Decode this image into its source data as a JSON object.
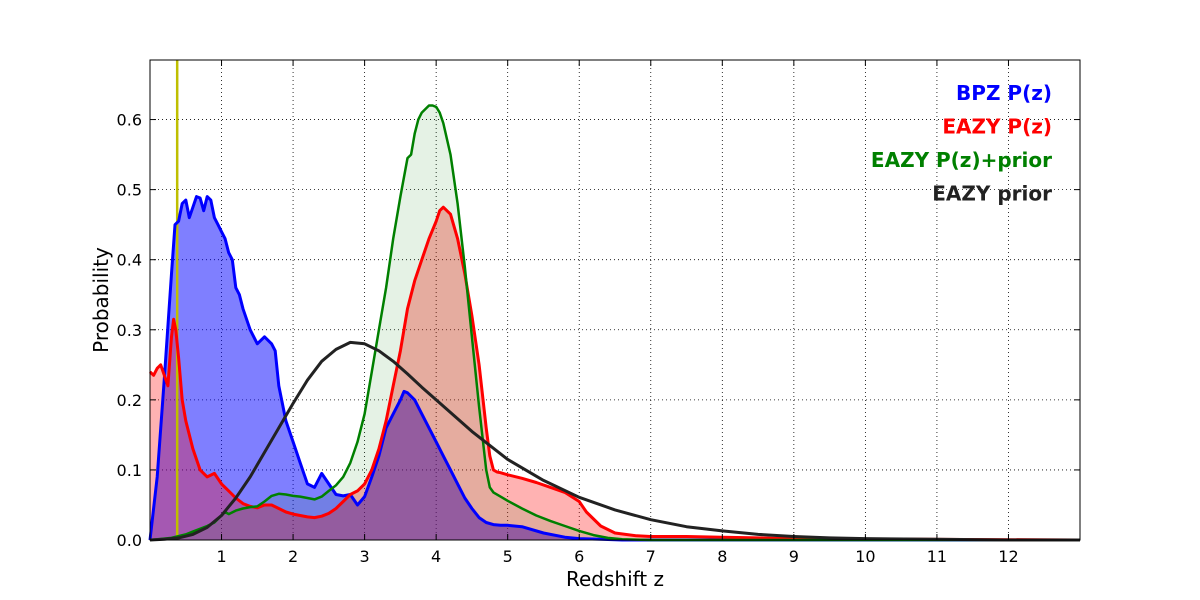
{
  "chart_data": {
    "type": "area",
    "title": "",
    "xlabel": "Redshift z",
    "ylabel": "Probability",
    "xlim": [
      0,
      13
    ],
    "ylim": [
      0,
      0.685
    ],
    "xticks": [
      1,
      2,
      3,
      4,
      5,
      6,
      7,
      8,
      9,
      10,
      11,
      12
    ],
    "yticks": [
      0.0,
      0.1,
      0.2,
      0.3,
      0.4,
      0.5,
      0.6
    ],
    "grid": true,
    "legend_position": "top-right",
    "vertical_line": {
      "x": 0.38,
      "color": "#bfbf00"
    },
    "series": [
      {
        "name": "BPZ P(z)",
        "color": "#0000ff",
        "fill_opacity": 0.5,
        "line_width": 3,
        "x": [
          0,
          0.1,
          0.2,
          0.3,
          0.35,
          0.4,
          0.45,
          0.5,
          0.55,
          0.6,
          0.65,
          0.7,
          0.75,
          0.8,
          0.85,
          0.9,
          0.95,
          1.0,
          1.05,
          1.1,
          1.15,
          1.2,
          1.25,
          1.3,
          1.4,
          1.5,
          1.6,
          1.7,
          1.75,
          1.8,
          1.9,
          2.0,
          2.1,
          2.2,
          2.3,
          2.4,
          2.5,
          2.6,
          2.7,
          2.8,
          2.9,
          3.0,
          3.1,
          3.2,
          3.3,
          3.4,
          3.5,
          3.55,
          3.6,
          3.7,
          3.8,
          3.9,
          4.0,
          4.1,
          4.2,
          4.3,
          4.4,
          4.5,
          4.6,
          4.7,
          4.8,
          4.9,
          5.0,
          5.2,
          5.5,
          5.8,
          6.0,
          6.3,
          6.6,
          7.0,
          13.0
        ],
        "values": [
          0.0,
          0.09,
          0.23,
          0.38,
          0.45,
          0.455,
          0.48,
          0.485,
          0.46,
          0.475,
          0.49,
          0.488,
          0.47,
          0.49,
          0.485,
          0.46,
          0.45,
          0.44,
          0.43,
          0.41,
          0.4,
          0.36,
          0.35,
          0.33,
          0.3,
          0.28,
          0.29,
          0.28,
          0.27,
          0.22,
          0.17,
          0.14,
          0.11,
          0.08,
          0.075,
          0.095,
          0.08,
          0.065,
          0.063,
          0.065,
          0.05,
          0.062,
          0.09,
          0.12,
          0.16,
          0.18,
          0.2,
          0.212,
          0.21,
          0.2,
          0.18,
          0.16,
          0.14,
          0.12,
          0.1,
          0.08,
          0.06,
          0.045,
          0.032,
          0.025,
          0.022,
          0.021,
          0.021,
          0.019,
          0.01,
          0.004,
          0.002,
          0.001,
          0.0,
          0.0,
          0.0
        ]
      },
      {
        "name": "EAZY P(z)",
        "color": "#ff0000",
        "fill_opacity": 0.3,
        "line_width": 3,
        "x": [
          0,
          0.05,
          0.1,
          0.15,
          0.2,
          0.25,
          0.3,
          0.33,
          0.36,
          0.4,
          0.45,
          0.5,
          0.6,
          0.7,
          0.8,
          0.9,
          1.0,
          1.1,
          1.2,
          1.3,
          1.4,
          1.5,
          1.6,
          1.7,
          1.8,
          1.9,
          2.0,
          2.1,
          2.2,
          2.3,
          2.4,
          2.5,
          2.6,
          2.7,
          2.8,
          2.9,
          3.0,
          3.1,
          3.2,
          3.3,
          3.4,
          3.5,
          3.6,
          3.7,
          3.8,
          3.9,
          4.0,
          4.05,
          4.1,
          4.2,
          4.3,
          4.4,
          4.5,
          4.6,
          4.7,
          4.75,
          4.8,
          4.85,
          4.9,
          5.0,
          5.2,
          5.4,
          5.6,
          5.8,
          6.0,
          6.1,
          6.3,
          6.5,
          6.8,
          7.0,
          7.5,
          8.0,
          8.5,
          9.0,
          13.0
        ],
        "values": [
          0.24,
          0.235,
          0.245,
          0.25,
          0.235,
          0.22,
          0.29,
          0.315,
          0.3,
          0.26,
          0.2,
          0.17,
          0.13,
          0.1,
          0.09,
          0.095,
          0.08,
          0.07,
          0.06,
          0.052,
          0.048,
          0.046,
          0.05,
          0.05,
          0.045,
          0.04,
          0.037,
          0.035,
          0.033,
          0.032,
          0.034,
          0.038,
          0.045,
          0.055,
          0.065,
          0.07,
          0.08,
          0.1,
          0.13,
          0.17,
          0.22,
          0.27,
          0.33,
          0.37,
          0.4,
          0.43,
          0.455,
          0.47,
          0.475,
          0.465,
          0.43,
          0.38,
          0.32,
          0.25,
          0.16,
          0.12,
          0.1,
          0.097,
          0.096,
          0.093,
          0.088,
          0.082,
          0.075,
          0.068,
          0.055,
          0.04,
          0.02,
          0.01,
          0.006,
          0.005,
          0.005,
          0.004,
          0.003,
          0.002,
          0.0
        ]
      },
      {
        "name": "EAZY P(z)+prior",
        "color": "#008000",
        "fill_opacity": 0.1,
        "line_width": 2.5,
        "x": [
          0,
          0.3,
          0.5,
          0.6,
          0.7,
          0.8,
          0.9,
          1.0,
          1.05,
          1.1,
          1.2,
          1.3,
          1.4,
          1.5,
          1.6,
          1.7,
          1.8,
          1.9,
          2.0,
          2.1,
          2.2,
          2.3,
          2.4,
          2.5,
          2.6,
          2.7,
          2.8,
          2.9,
          3.0,
          3.1,
          3.2,
          3.3,
          3.4,
          3.5,
          3.6,
          3.65,
          3.7,
          3.75,
          3.8,
          3.9,
          3.95,
          4.0,
          4.05,
          4.1,
          4.2,
          4.3,
          4.4,
          4.5,
          4.6,
          4.7,
          4.75,
          4.8,
          4.9,
          5.0,
          5.2,
          5.4,
          5.6,
          5.8,
          6.0,
          6.2,
          6.4,
          6.6,
          7.0,
          13.0
        ],
        "values": [
          0.0,
          0.003,
          0.008,
          0.012,
          0.016,
          0.02,
          0.025,
          0.035,
          0.04,
          0.037,
          0.042,
          0.045,
          0.047,
          0.048,
          0.055,
          0.063,
          0.066,
          0.065,
          0.063,
          0.062,
          0.06,
          0.058,
          0.062,
          0.07,
          0.078,
          0.09,
          0.11,
          0.14,
          0.18,
          0.24,
          0.3,
          0.36,
          0.43,
          0.49,
          0.545,
          0.55,
          0.58,
          0.6,
          0.61,
          0.62,
          0.62,
          0.618,
          0.61,
          0.595,
          0.55,
          0.48,
          0.39,
          0.29,
          0.19,
          0.1,
          0.075,
          0.068,
          0.062,
          0.056,
          0.045,
          0.035,
          0.027,
          0.02,
          0.013,
          0.007,
          0.003,
          0.001,
          0.0,
          0.0
        ]
      },
      {
        "name": "EAZY prior",
        "color": "#222222",
        "fill_opacity": 0,
        "line_width": 3,
        "x": [
          0,
          0.2,
          0.4,
          0.6,
          0.8,
          1.0,
          1.2,
          1.4,
          1.6,
          1.8,
          2.0,
          2.2,
          2.4,
          2.6,
          2.8,
          3.0,
          3.2,
          3.4,
          3.6,
          3.8,
          4.0,
          4.5,
          5.0,
          5.5,
          6.0,
          6.5,
          7.0,
          7.5,
          8.0,
          8.5,
          9.0,
          9.5,
          10.0,
          11.0,
          12.0,
          13.0
        ],
        "values": [
          0.0,
          0.001,
          0.003,
          0.008,
          0.018,
          0.035,
          0.06,
          0.09,
          0.125,
          0.16,
          0.195,
          0.228,
          0.255,
          0.272,
          0.282,
          0.28,
          0.27,
          0.255,
          0.237,
          0.218,
          0.2,
          0.155,
          0.115,
          0.085,
          0.061,
          0.043,
          0.029,
          0.019,
          0.013,
          0.008,
          0.005,
          0.003,
          0.002,
          0.001,
          0.0,
          0.0
        ]
      }
    ]
  }
}
